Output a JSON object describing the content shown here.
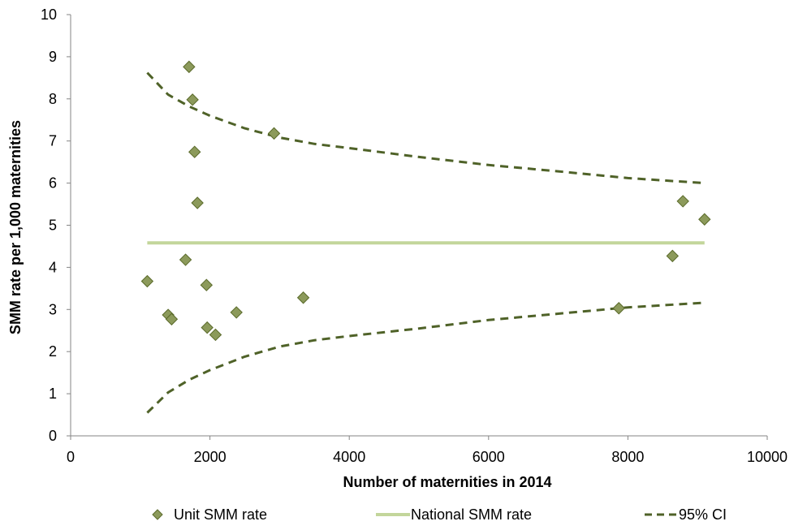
{
  "chart_data": {
    "type": "scatter",
    "title": "",
    "xlabel": "Number of maternities in 2014",
    "ylabel": "SMM rate per 1,000  maternities",
    "xlim": [
      0,
      10000
    ],
    "ylim": [
      0,
      10
    ],
    "x_ticks": [
      "0",
      "2000",
      "4000",
      "6000",
      "8000",
      "10000"
    ],
    "y_ticks": [
      "0",
      "1",
      "2",
      "3",
      "4",
      "5",
      "6",
      "7",
      "8",
      "9",
      "10"
    ],
    "grid": false,
    "legend_position": "bottom",
    "series": [
      {
        "name": "Unit SMM rate",
        "style": "markers",
        "marker": "diamond",
        "color": "#8c9a5b",
        "x": [
          1100,
          1400,
          1450,
          1650,
          1700,
          1750,
          1780,
          1820,
          1950,
          1960,
          2080,
          2380,
          2920,
          3340,
          7870,
          8640,
          8790,
          9100
        ],
        "y": [
          3.67,
          2.87,
          2.77,
          4.18,
          8.76,
          7.98,
          6.74,
          5.53,
          3.58,
          2.57,
          2.4,
          2.93,
          7.18,
          3.28,
          3.03,
          4.27,
          5.57,
          5.14
        ]
      },
      {
        "name": "National SMM rate",
        "style": "line",
        "color": "#c3d69b",
        "x": [
          1100,
          9100
        ],
        "y": [
          4.58,
          4.58
        ]
      },
      {
        "name": "95% CI",
        "style": "dashed",
        "color": "#4f6228",
        "lines": [
          {
            "x": [
              1100,
              1400,
              1700,
              2000,
              2500,
              3000,
              3500,
              4000,
              5000,
              6000,
              7000,
              8000,
              9100
            ],
            "y": [
              8.62,
              8.1,
              7.82,
              7.6,
              7.3,
              7.08,
              6.93,
              6.83,
              6.62,
              6.43,
              6.28,
              6.12,
              6.0
            ]
          },
          {
            "x": [
              1100,
              1400,
              1700,
              2000,
              2500,
              3000,
              3500,
              4000,
              5000,
              6000,
              7000,
              8000,
              9100
            ],
            "y": [
              0.55,
              1.03,
              1.33,
              1.56,
              1.88,
              2.12,
              2.27,
              2.37,
              2.55,
              2.75,
              2.9,
              3.05,
              3.16
            ]
          }
        ]
      }
    ]
  }
}
